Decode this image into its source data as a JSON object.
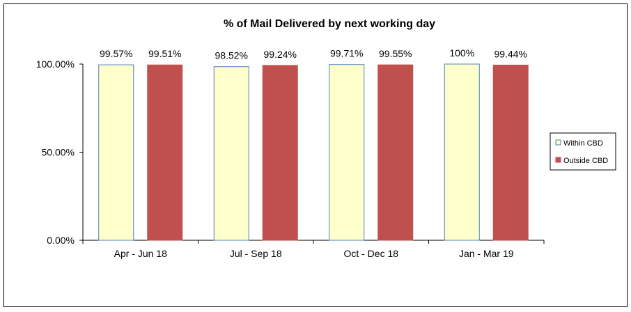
{
  "chart_data": {
    "type": "bar",
    "title": "% of Mail Delivered by next working day",
    "categories": [
      "Apr - Jun 18",
      "Jul - Sep 18",
      "Oct - Dec 18",
      "Jan - Mar 19"
    ],
    "series": [
      {
        "name": "Within CBD",
        "values": [
          99.57,
          98.52,
          99.71,
          100
        ],
        "labels": [
          "99.57%",
          "98.52%",
          "99.71%",
          "100%"
        ],
        "color": "#FFFFCC",
        "stroke": "#4F81BD"
      },
      {
        "name": "Outside CBD",
        "values": [
          99.51,
          99.24,
          99.55,
          99.44
        ],
        "labels": [
          "99.51%",
          "99.24%",
          "99.55%",
          "99.44%"
        ],
        "color": "#C0504D",
        "stroke": "#C0504D"
      }
    ],
    "yticks": [
      {
        "value": 0,
        "label": "0.00%"
      },
      {
        "value": 50,
        "label": "50.00%"
      },
      {
        "value": 100,
        "label": "100.00%"
      }
    ],
    "ylim": [
      0,
      100
    ],
    "xlabel": "",
    "ylabel": "",
    "grid": false,
    "legend_position": "right"
  }
}
